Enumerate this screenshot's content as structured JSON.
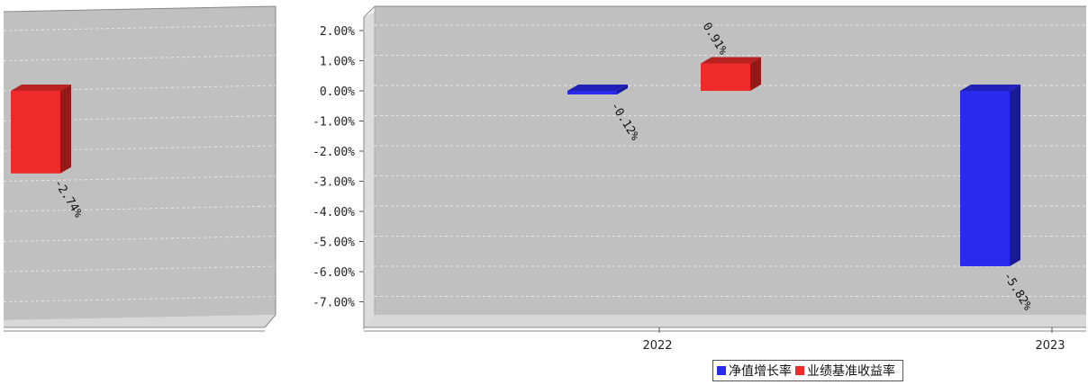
{
  "chart_data": [
    {
      "type": "bar",
      "style": "3d",
      "categories": [
        ""
      ],
      "series": [
        {
          "name": "业绩基准收益率",
          "color": "#ee2a2a",
          "values": [
            -2.74
          ]
        }
      ],
      "data_labels": [
        "-2.74%"
      ]
    },
    {
      "type": "bar",
      "style": "3d",
      "categories": [
        "2022",
        "2023"
      ],
      "yticks": [
        "2.00%",
        "1.00%",
        "0.00%",
        "-1.00%",
        "-2.00%",
        "-3.00%",
        "-4.00%",
        "-5.00%",
        "-6.00%",
        "-7.00%"
      ],
      "ylim": [
        -7.7,
        2.6
      ],
      "grid": true,
      "series": [
        {
          "name": "净值增长率",
          "color": "#2a2aee",
          "values": [
            -0.12,
            -5.82
          ],
          "labels": [
            "-0.12%",
            "-5.82%"
          ]
        },
        {
          "name": "业绩基准收益率",
          "color": "#ee2a2a",
          "values": [
            0.91,
            null
          ],
          "labels": [
            "0.91%",
            ""
          ]
        }
      ]
    }
  ],
  "legend": {
    "items": [
      {
        "label": "净值增长率",
        "color": "#2a2aee"
      },
      {
        "label": "业绩基准收益率",
        "color": "#ee2a2a"
      }
    ]
  }
}
